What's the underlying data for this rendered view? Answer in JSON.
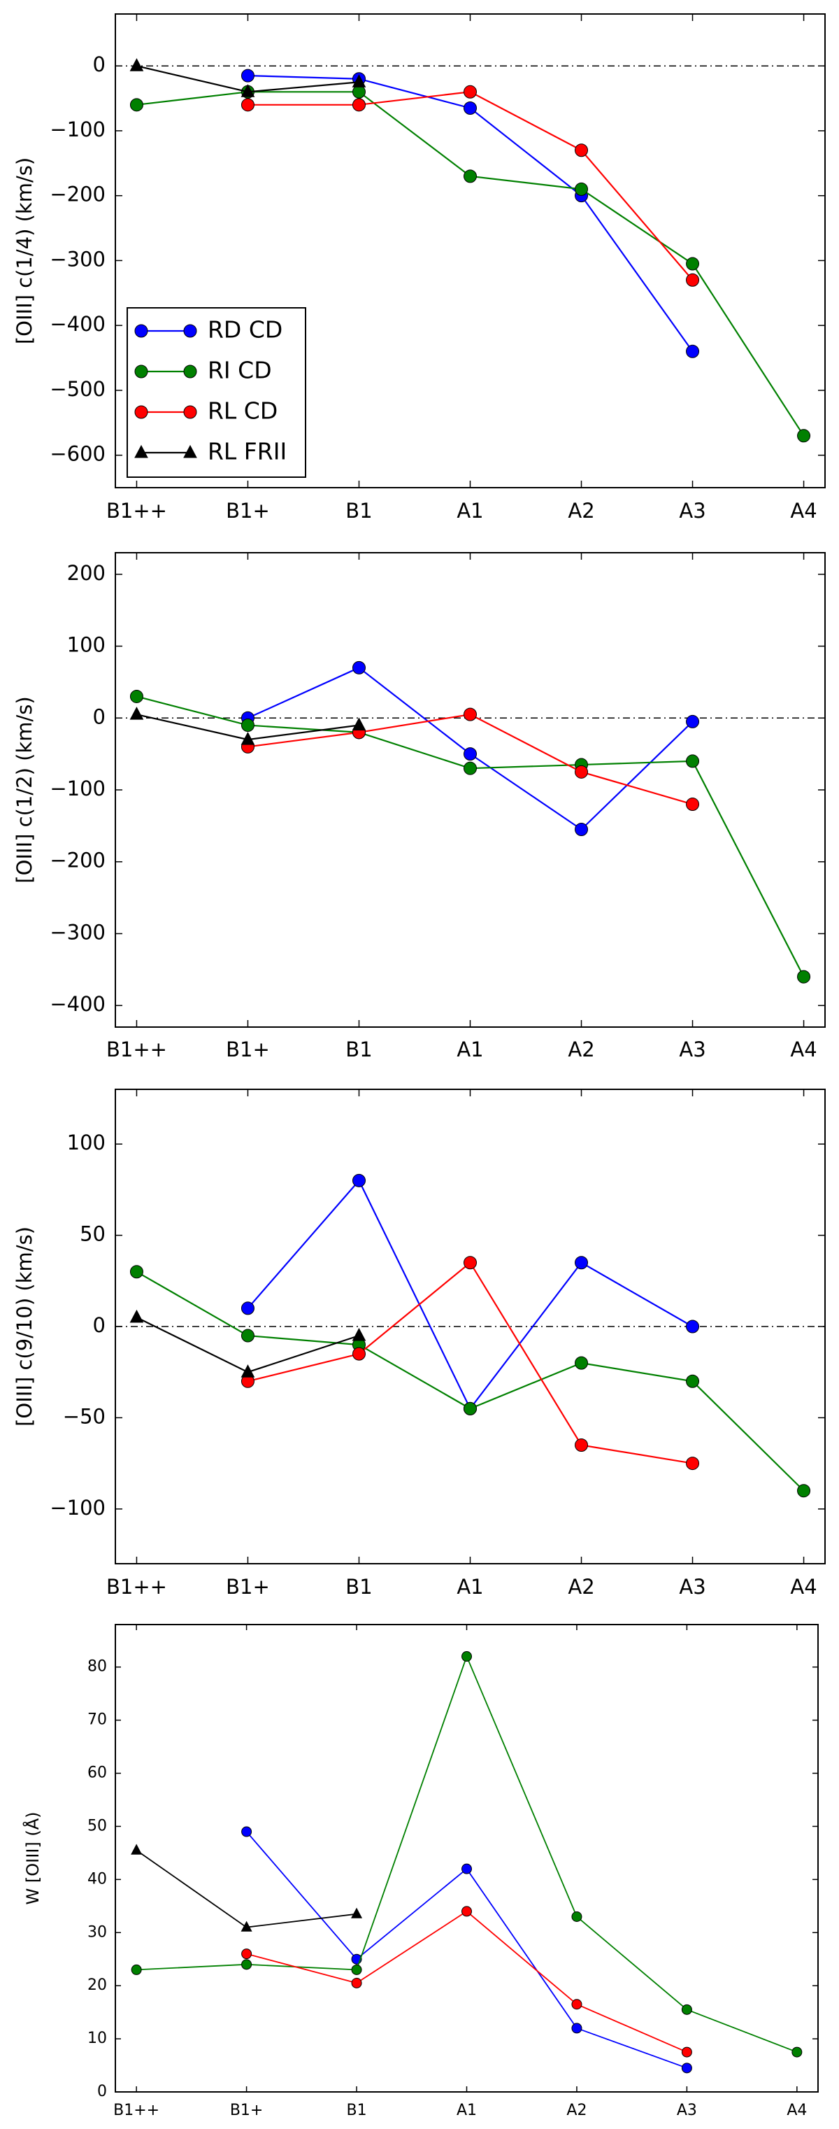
{
  "chart_data": [
    {
      "type": "line",
      "ylabel": "[OIII] c(1/4) (km/s)",
      "categories": [
        "B1++",
        "B1+",
        "B1",
        "A1",
        "A2",
        "A3",
        "A4"
      ],
      "ylim": [
        -650,
        80
      ],
      "yticks": [
        0,
        -100,
        -200,
        -300,
        -400,
        -500,
        -600
      ],
      "ytick_labels": [
        "0",
        "−100",
        "−200",
        "−300",
        "−400",
        "−500",
        "−600"
      ],
      "reference_line": 0,
      "legend": {
        "position": "lower-left",
        "entries": [
          "RD CD",
          "RI CD",
          "RL CD",
          "RL FRII"
        ]
      },
      "series": [
        {
          "name": "RD CD",
          "color": "#0000ff",
          "marker": "circle",
          "values": [
            null,
            -15,
            -20,
            -65,
            -200,
            -440,
            null
          ]
        },
        {
          "name": "RI CD",
          "color": "#008000",
          "marker": "circle",
          "values": [
            -60,
            -40,
            -40,
            -170,
            -190,
            -305,
            -570
          ]
        },
        {
          "name": "RL CD",
          "color": "#ff0000",
          "marker": "circle",
          "values": [
            null,
            -60,
            -60,
            -40,
            -130,
            -330,
            null
          ]
        },
        {
          "name": "RL FRII",
          "color": "#000000",
          "marker": "triangle",
          "values": [
            0,
            -40,
            -25,
            null,
            null,
            null,
            null
          ]
        }
      ]
    },
    {
      "type": "line",
      "ylabel": "[OIII] c(1/2) (km/s)",
      "categories": [
        "B1++",
        "B1+",
        "B1",
        "A1",
        "A2",
        "A3",
        "A4"
      ],
      "ylim": [
        -430,
        230
      ],
      "yticks": [
        200,
        100,
        0,
        -100,
        -200,
        -300,
        -400
      ],
      "ytick_labels": [
        "200",
        "100",
        "0",
        "−100",
        "−200",
        "−300",
        "−400"
      ],
      "reference_line": 0,
      "series": [
        {
          "name": "RD CD",
          "color": "#0000ff",
          "marker": "circle",
          "values": [
            null,
            0,
            70,
            -50,
            -155,
            -5,
            null
          ]
        },
        {
          "name": "RI CD",
          "color": "#008000",
          "marker": "circle",
          "values": [
            30,
            -10,
            -20,
            -70,
            -65,
            -60,
            -360
          ]
        },
        {
          "name": "RL CD",
          "color": "#ff0000",
          "marker": "circle",
          "values": [
            null,
            -40,
            -20,
            5,
            -75,
            -120,
            null
          ]
        },
        {
          "name": "RL FRII",
          "color": "#000000",
          "marker": "triangle",
          "values": [
            5,
            -30,
            -10,
            null,
            null,
            null,
            null
          ]
        }
      ]
    },
    {
      "type": "line",
      "ylabel": "[OIII] c(9/10) (km/s)",
      "categories": [
        "B1++",
        "B1+",
        "B1",
        "A1",
        "A2",
        "A3",
        "A4"
      ],
      "ylim": [
        -130,
        130
      ],
      "yticks": [
        100,
        50,
        0,
        -50,
        -100
      ],
      "ytick_labels": [
        "100",
        "50",
        "0",
        "−50",
        "−100"
      ],
      "reference_line": 0,
      "series": [
        {
          "name": "RD CD",
          "color": "#0000ff",
          "marker": "circle",
          "values": [
            null,
            10,
            80,
            -45,
            35,
            0,
            null
          ]
        },
        {
          "name": "RI CD",
          "color": "#008000",
          "marker": "circle",
          "values": [
            30,
            -5,
            -10,
            -45,
            -20,
            -30,
            -90
          ]
        },
        {
          "name": "RL CD",
          "color": "#ff0000",
          "marker": "circle",
          "values": [
            null,
            -30,
            -15,
            35,
            -65,
            -75,
            null
          ]
        },
        {
          "name": "RL FRII",
          "color": "#000000",
          "marker": "triangle",
          "values": [
            5,
            -25,
            -5,
            null,
            null,
            null,
            null
          ]
        }
      ]
    },
    {
      "type": "line",
      "ylabel": "W [OIII] (Å)",
      "categories": [
        "B1++",
        "B1+",
        "B1",
        "A1",
        "A2",
        "A3",
        "A4"
      ],
      "ylim": [
        0,
        88
      ],
      "yticks": [
        0,
        10,
        20,
        30,
        40,
        50,
        60,
        70,
        80
      ],
      "ytick_labels": [
        "0",
        "10",
        "20",
        "30",
        "40",
        "50",
        "60",
        "70",
        "80"
      ],
      "series": [
        {
          "name": "RD CD",
          "color": "#0000ff",
          "marker": "circle",
          "values": [
            null,
            49,
            25,
            42,
            12,
            4.5,
            null
          ]
        },
        {
          "name": "RI CD",
          "color": "#008000",
          "marker": "circle",
          "values": [
            23,
            24,
            23,
            82,
            33,
            15.5,
            7.5
          ]
        },
        {
          "name": "RL CD",
          "color": "#ff0000",
          "marker": "circle",
          "values": [
            null,
            26,
            20.5,
            34,
            16.5,
            7.5,
            null
          ]
        },
        {
          "name": "RL FRII",
          "color": "#000000",
          "marker": "triangle",
          "values": [
            45.5,
            31,
            33.5,
            null,
            null,
            null,
            null
          ]
        }
      ]
    }
  ]
}
